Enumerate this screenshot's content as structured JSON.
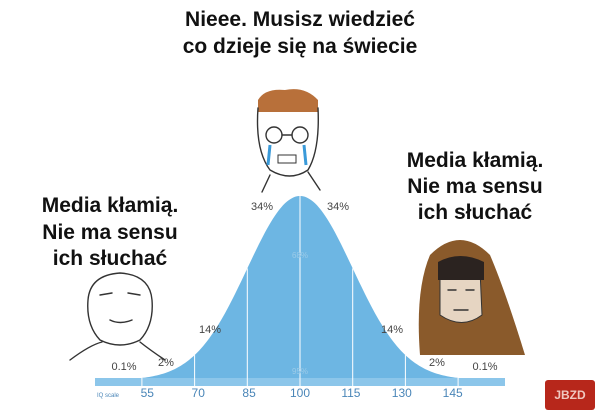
{
  "top_caption": [
    "Nieee. Musisz wiedzieć",
    "co dzieje się na świecie"
  ],
  "left_caption": [
    "Media kłamią.",
    "Nie ma sensu",
    "ich słuchać"
  ],
  "right_caption": [
    "Media kłamią.",
    "Nie ma sensu",
    "ich słuchać"
  ],
  "curve": {
    "percent_labels": [
      "0.1%",
      "2%",
      "14%",
      "34%",
      "34%",
      "14%",
      "2%",
      "0.1%"
    ],
    "inner_labels": [
      "68%",
      "95%"
    ],
    "scale_name": "IQ scale",
    "scale_ticks": [
      "55",
      "70",
      "85",
      "100",
      "115",
      "130",
      "145"
    ]
  },
  "watermark": "JBZD"
}
